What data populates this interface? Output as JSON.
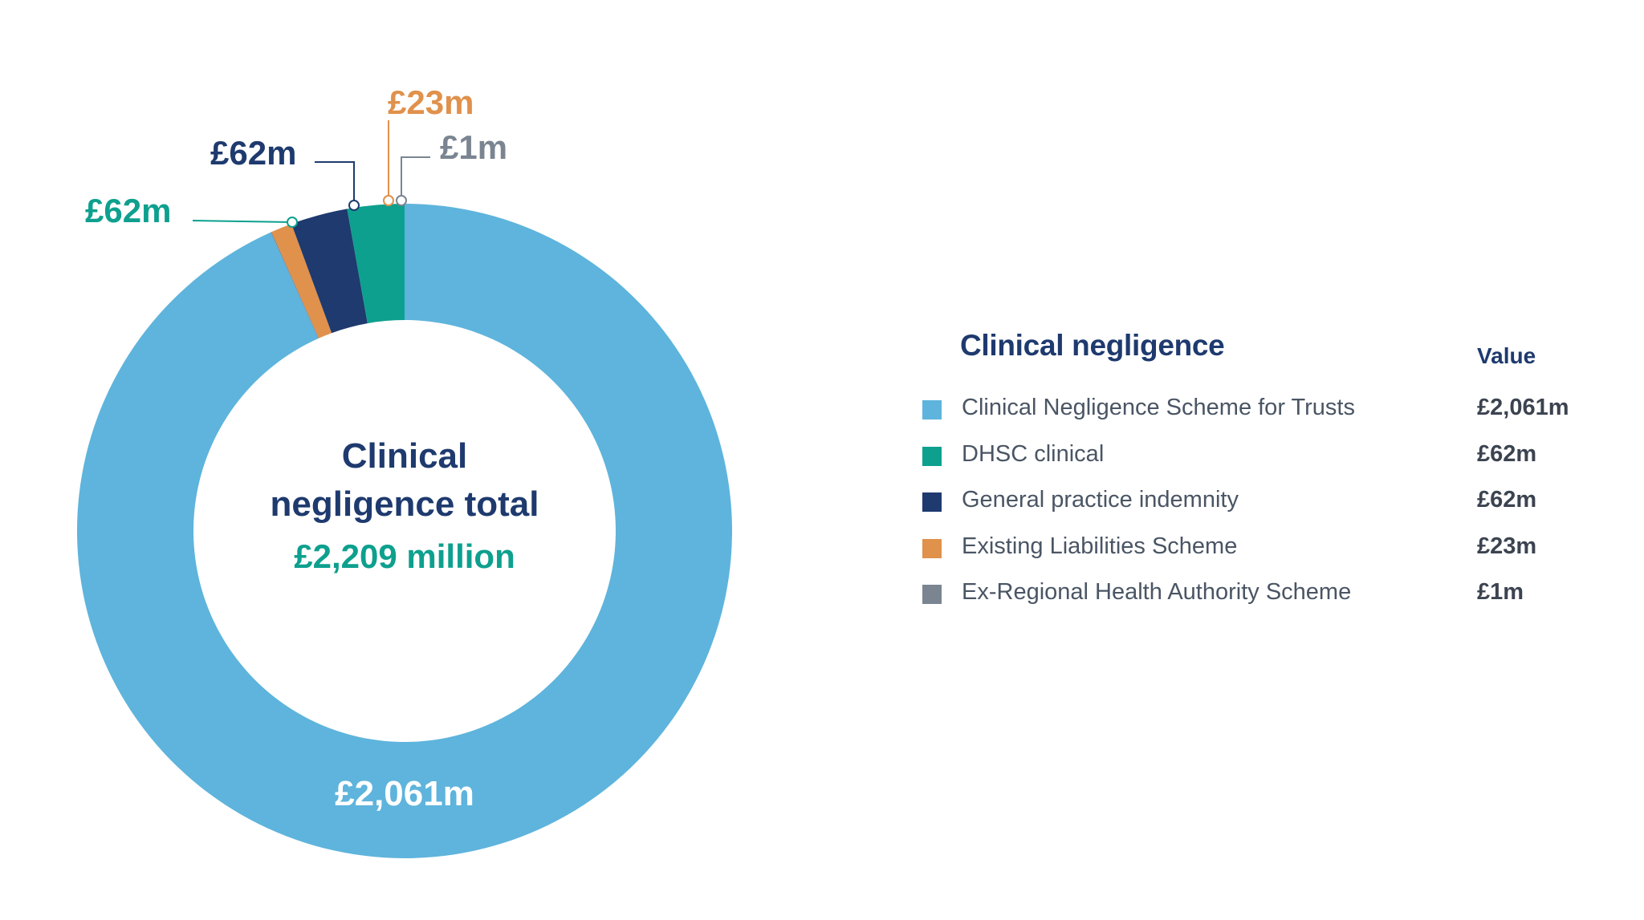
{
  "colors": {
    "dark_navy": "#1e3a6e",
    "label_grey": "#4a5564",
    "value_grey": "#3c4350",
    "white": "#ffffff"
  },
  "center": {
    "line1": "Clinical",
    "line2": "negligence total",
    "total": "£2,209 million"
  },
  "legend": {
    "title": "Clinical negligence",
    "value_header": "Value",
    "items": [
      {
        "label": "Clinical Negligence Scheme for Trusts",
        "value": "£2,061m"
      },
      {
        "label": "DHSC clinical",
        "value": "£62m"
      },
      {
        "label": "General practice indemnity",
        "value": "£62m"
      },
      {
        "label": "Existing Liabilities Scheme",
        "value": "£23m"
      },
      {
        "label": "Ex-Regional Health Authority Scheme",
        "value": "£1m"
      }
    ]
  },
  "chart_data": {
    "type": "pie",
    "donut": true,
    "total": 2209,
    "unit": "£m",
    "legend_position": "right",
    "categories": [
      "Clinical Negligence Scheme for Trusts",
      "DHSC clinical",
      "General practice indemnity",
      "Existing Liabilities Scheme",
      "Ex-Regional Health Authority Scheme"
    ],
    "values": [
      2061,
      62,
      62,
      23,
      1
    ],
    "data_labels": [
      "£2,061m",
      "£62m",
      "£62m",
      "£23m",
      "£1m"
    ],
    "colors": [
      "#5eb4dc",
      "#0da08e",
      "#1e3a6e",
      "#e0914b",
      "#7a8591"
    ]
  }
}
